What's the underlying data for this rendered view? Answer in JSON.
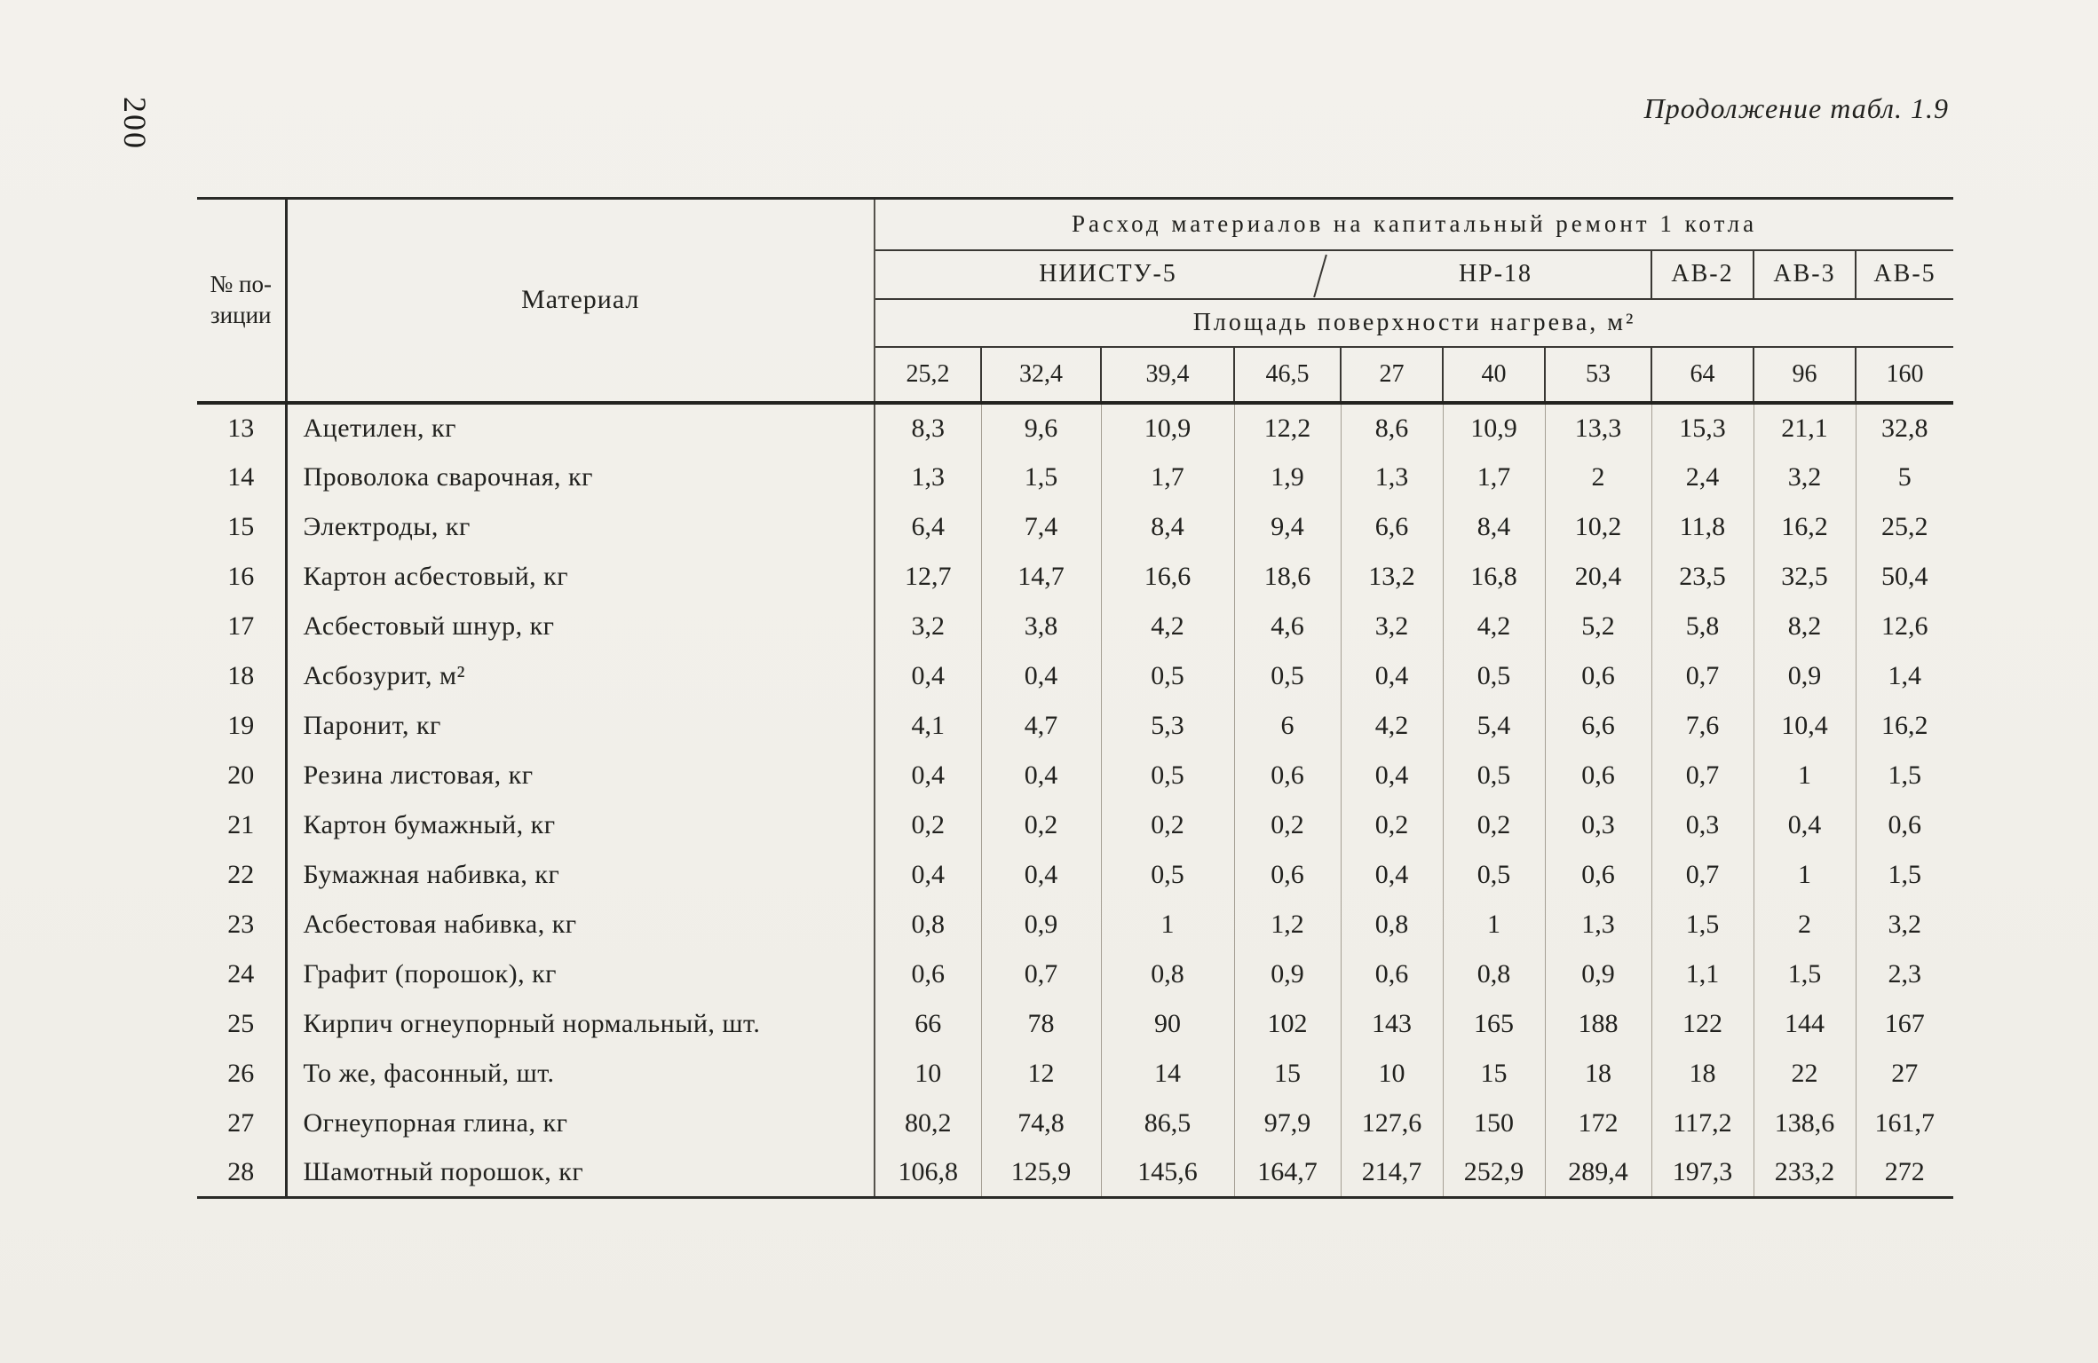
{
  "page": {
    "number": "200",
    "continuation": "Продолжение табл. 1.9"
  },
  "table": {
    "pos_header_line1": "№ по-",
    "pos_header_line2": "зиции",
    "material_header": "Материал",
    "span_header": "Расход материалов на капитальный ремонт 1 котла",
    "boilers": [
      {
        "label": "НИИСТУ-5",
        "span": 4
      },
      {
        "label": "НР-18",
        "span": 3
      },
      {
        "label": "АВ-2",
        "span": 1
      },
      {
        "label": "АВ-3",
        "span": 1
      },
      {
        "label": "АВ-5",
        "span": 1
      }
    ],
    "area_header": "Площадь поверхности нагрева, м²",
    "areas": [
      "25,2",
      "32,4",
      "39,4",
      "46,5",
      "27",
      "40",
      "53",
      "64",
      "96",
      "160"
    ],
    "rows": [
      {
        "pos": "13",
        "material": "Ацетилен, кг",
        "values": [
          "8,3",
          "9,6",
          "10,9",
          "12,2",
          "8,6",
          "10,9",
          "13,3",
          "15,3",
          "21,1",
          "32,8"
        ]
      },
      {
        "pos": "14",
        "material": "Проволока сварочная, кг",
        "values": [
          "1,3",
          "1,5",
          "1,7",
          "1,9",
          "1,3",
          "1,7",
          "2",
          "2,4",
          "3,2",
          "5"
        ]
      },
      {
        "pos": "15",
        "material": "Электроды, кг",
        "values": [
          "6,4",
          "7,4",
          "8,4",
          "9,4",
          "6,6",
          "8,4",
          "10,2",
          "11,8",
          "16,2",
          "25,2"
        ]
      },
      {
        "pos": "16",
        "material": "Картон асбестовый, кг",
        "values": [
          "12,7",
          "14,7",
          "16,6",
          "18,6",
          "13,2",
          "16,8",
          "20,4",
          "23,5",
          "32,5",
          "50,4"
        ]
      },
      {
        "pos": "17",
        "material": "Асбестовый шнур, кг",
        "values": [
          "3,2",
          "3,8",
          "4,2",
          "4,6",
          "3,2",
          "4,2",
          "5,2",
          "5,8",
          "8,2",
          "12,6"
        ]
      },
      {
        "pos": "18",
        "material": "Асбозурит, м²",
        "values": [
          "0,4",
          "0,4",
          "0,5",
          "0,5",
          "0,4",
          "0,5",
          "0,6",
          "0,7",
          "0,9",
          "1,4"
        ]
      },
      {
        "pos": "19",
        "material": "Паронит, кг",
        "values": [
          "4,1",
          "4,7",
          "5,3",
          "6",
          "4,2",
          "5,4",
          "6,6",
          "7,6",
          "10,4",
          "16,2"
        ]
      },
      {
        "pos": "20",
        "material": "Резина листовая, кг",
        "values": [
          "0,4",
          "0,4",
          "0,5",
          "0,6",
          "0,4",
          "0,5",
          "0,6",
          "0,7",
          "1",
          "1,5"
        ]
      },
      {
        "pos": "21",
        "material": "Картон бумажный, кг",
        "values": [
          "0,2",
          "0,2",
          "0,2",
          "0,2",
          "0,2",
          "0,2",
          "0,3",
          "0,3",
          "0,4",
          "0,6"
        ]
      },
      {
        "pos": "22",
        "material": "Бумажная набивка, кг",
        "values": [
          "0,4",
          "0,4",
          "0,5",
          "0,6",
          "0,4",
          "0,5",
          "0,6",
          "0,7",
          "1",
          "1,5"
        ]
      },
      {
        "pos": "23",
        "material": "Асбестовая набивка, кг",
        "values": [
          "0,8",
          "0,9",
          "1",
          "1,2",
          "0,8",
          "1",
          "1,3",
          "1,5",
          "2",
          "3,2"
        ]
      },
      {
        "pos": "24",
        "material": "Графит (порошок), кг",
        "values": [
          "0,6",
          "0,7",
          "0,8",
          "0,9",
          "0,6",
          "0,8",
          "0,9",
          "1,1",
          "1,5",
          "2,3"
        ]
      },
      {
        "pos": "25",
        "material": "Кирпич огнеупорный нормальный, шт.",
        "values": [
          "66",
          "78",
          "90",
          "102",
          "143",
          "165",
          "188",
          "122",
          "144",
          "167"
        ]
      },
      {
        "pos": "26",
        "material": "То же, фасонный, шт.",
        "values": [
          "10",
          "12",
          "14",
          "15",
          "10",
          "15",
          "18",
          "18",
          "22",
          "27"
        ]
      },
      {
        "pos": "27",
        "material": "Огнеупорная глина, кг",
        "values": [
          "80,2",
          "74,8",
          "86,5",
          "97,9",
          "127,6",
          "150",
          "172",
          "117,2",
          "138,6",
          "161,7"
        ]
      },
      {
        "pos": "28",
        "material": "Шамотный порошок, кг",
        "values": [
          "106,8",
          "125,9",
          "145,6",
          "164,7",
          "214,7",
          "252,9",
          "289,4",
          "197,3",
          "233,2",
          "272"
        ]
      }
    ]
  }
}
